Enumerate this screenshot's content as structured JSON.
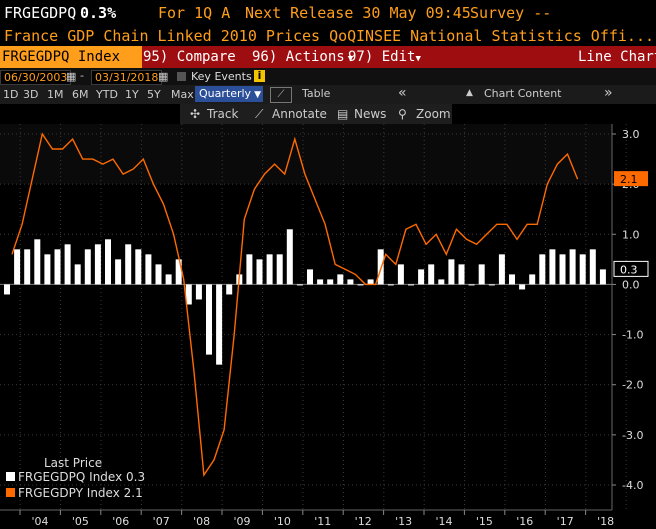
{
  "header": {
    "ticker": "FRGEGDPQ",
    "value": "0.3%",
    "period": "For 1Q A",
    "next_release": "Next Release 30 May 09:45",
    "survey": "Survey --",
    "description": "France GDP Chain Linked 2010 Prices QoQ",
    "source": "INSEE National Statistics Offi..."
  },
  "toolbar": {
    "security": "FRGEGDPQ Index",
    "compare": "95) Compare",
    "actions": "96) Actions",
    "edit": "97) Edit",
    "view": "Line Chart"
  },
  "dates": {
    "start": "06/30/2003",
    "end": "03/31/2018",
    "key_events": "Key Events"
  },
  "ranges": [
    "1D",
    "3D",
    "1M",
    "6M",
    "YTD",
    "1Y",
    "5Y",
    "Max"
  ],
  "frequency": "Quarterly",
  "table_label": "Table",
  "chart_content": "Chart Content",
  "tools": {
    "track": "Track",
    "annotate": "Annotate",
    "news": "News",
    "zoom": "Zoom"
  },
  "legend": {
    "title": "Last Price",
    "items": [
      {
        "label": "FRGEGDPQ Index 0.3",
        "color": "#ffffff"
      },
      {
        "label": "FRGEGDPY Index 2.1",
        "color": "#ff6a00"
      }
    ]
  },
  "colors": {
    "accent": "#ff9e1b",
    "toolbar_red": "#9e0e10",
    "series_line": "#ff6a00"
  },
  "chart_data": {
    "type": "bar",
    "ylim": [
      -4.3,
      3.3
    ],
    "y_ticks": [
      "3.0",
      "2.0",
      "1.0",
      "0.0",
      "-1.0",
      "-2.0",
      "-3.0",
      "-4.0"
    ],
    "x_labels": [
      "'04",
      "'05",
      "'06",
      "'07",
      "'08",
      "'09",
      "'10",
      "'11",
      "'12",
      "'13",
      "'14",
      "'15",
      "'16",
      "'17",
      "'18"
    ],
    "last_labels": {
      "line": "2.1",
      "bars": "0.3"
    },
    "series": [
      {
        "name": "FRGEGDPQ Index",
        "kind": "bar",
        "values": [
          -0.2,
          0.7,
          0.7,
          0.9,
          0.6,
          0.7,
          0.8,
          0.4,
          0.7,
          0.8,
          0.9,
          0.5,
          0.8,
          0.7,
          0.6,
          0.4,
          0.2,
          0.5,
          -0.4,
          -0.3,
          -1.4,
          -1.6,
          -0.2,
          0.2,
          0.6,
          0.5,
          0.6,
          0.6,
          1.1,
          0.0,
          0.3,
          0.1,
          0.1,
          0.2,
          0.1,
          0.0,
          0.1,
          0.7,
          0.0,
          0.4,
          0.0,
          0.3,
          0.4,
          0.1,
          0.5,
          0.4,
          0.0,
          0.4,
          0.0,
          0.6,
          0.2,
          -0.1,
          0.2,
          0.6,
          0.7,
          0.6,
          0.7,
          0.6,
          0.7,
          0.3
        ]
      },
      {
        "name": "FRGEGDPY Index",
        "kind": "line",
        "values": [
          0.6,
          1.2,
          2.1,
          3.0,
          2.7,
          2.7,
          2.9,
          2.5,
          2.5,
          2.4,
          2.5,
          2.2,
          2.3,
          2.5,
          2.0,
          1.6,
          1.0,
          0.1,
          -1.7,
          -3.8,
          -3.5,
          -2.9,
          -1.0,
          1.3,
          1.9,
          2.2,
          2.4,
          2.2,
          2.9,
          2.2,
          1.7,
          1.2,
          0.4,
          0.3,
          0.2,
          0.0,
          0.0,
          0.6,
          0.4,
          1.1,
          1.2,
          0.8,
          1.0,
          0.6,
          1.1,
          0.9,
          0.8,
          1.0,
          1.2,
          1.2,
          0.9,
          1.2,
          1.2,
          2.0,
          2.4,
          2.6,
          2.1
        ]
      }
    ]
  }
}
